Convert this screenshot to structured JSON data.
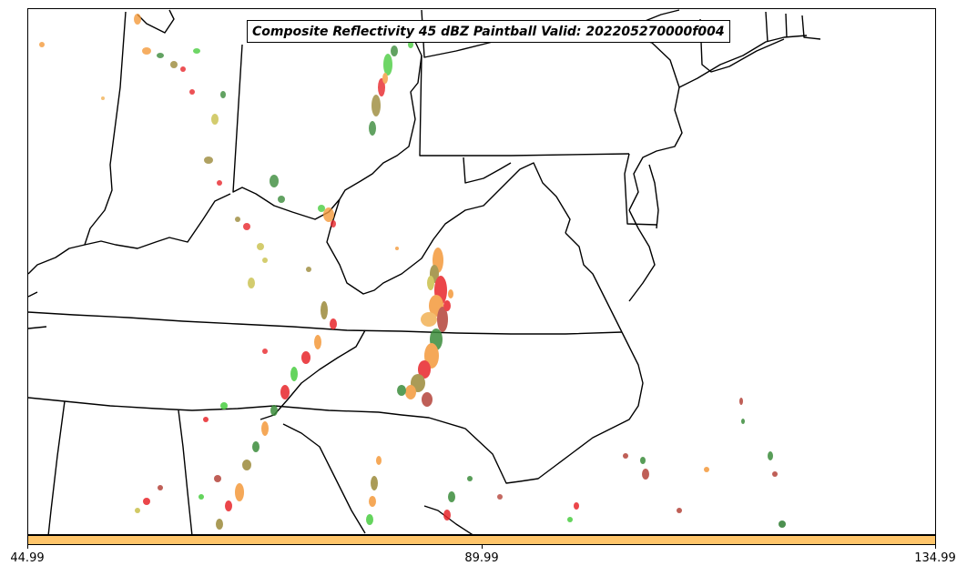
{
  "title": "Composite Reflectivity 45 dBZ Paintball Valid: 202205270000f004",
  "colorbar": {
    "color": "#FFC56A",
    "ticks": [
      "44.99",
      "89.99",
      "134.99"
    ]
  },
  "ensemble_colors": [
    "#E8262B",
    "#3C8C3C",
    "#F49A3C",
    "#9C8A3A",
    "#B5443A",
    "#4ACD41",
    "#7B5C2A",
    "#C9C04B",
    "#2E7D32",
    "#F2B257"
  ],
  "map_style": {
    "land": "#FFFFFF",
    "borders": "#000000"
  }
}
